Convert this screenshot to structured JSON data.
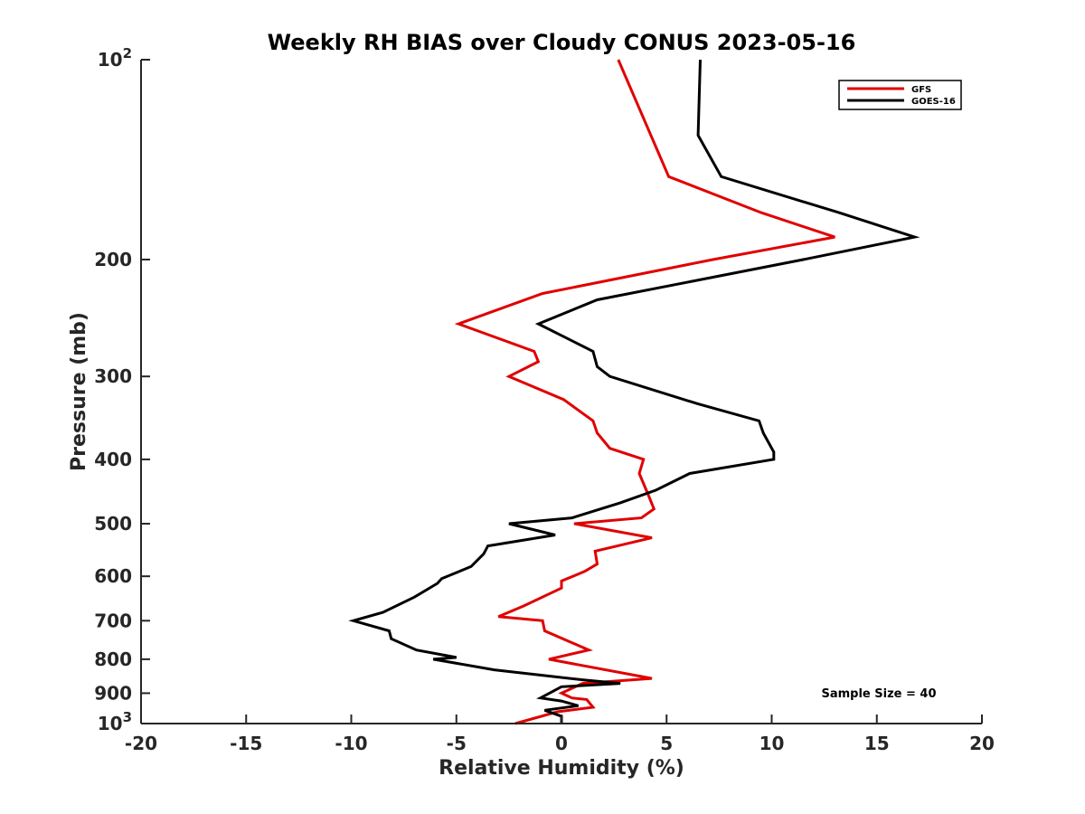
{
  "chart_data": {
    "type": "line",
    "title": "Weekly RH BIAS over Cloudy CONUS 2023-05-16",
    "xlabel": "Relative Humidity (%)",
    "ylabel": "Pressure (mb)",
    "xlim": [
      -20,
      20
    ],
    "ylim": [
      1000,
      100
    ],
    "y_scale": "log",
    "x_ticks": [
      "-20",
      "-15",
      "-10",
      "-5",
      "0",
      "5",
      "10",
      "15",
      "20"
    ],
    "y_ticks": [
      {
        "value": 100,
        "label": "10",
        "exp": "2"
      },
      {
        "value": 200,
        "label": "200",
        "exp": ""
      },
      {
        "value": 300,
        "label": "300",
        "exp": ""
      },
      {
        "value": 400,
        "label": "400",
        "exp": ""
      },
      {
        "value": 500,
        "label": "500",
        "exp": ""
      },
      {
        "value": 600,
        "label": "600",
        "exp": ""
      },
      {
        "value": 700,
        "label": "700",
        "exp": ""
      },
      {
        "value": 800,
        "label": "800",
        "exp": ""
      },
      {
        "value": 900,
        "label": "900",
        "exp": ""
      },
      {
        "value": 1000,
        "label": "10",
        "exp": "3"
      }
    ],
    "grid": false,
    "legend_position": "top-right",
    "annotation": "Sample Size = 40",
    "series": [
      {
        "name": "GFS",
        "color": "#e00000",
        "points": [
          [
            2.7,
            100
          ],
          [
            5.1,
            150
          ],
          [
            9.5,
            170
          ],
          [
            13.0,
            185
          ],
          [
            7.2,
            200
          ],
          [
            -0.9,
            225
          ],
          [
            -4.9,
            250
          ],
          [
            -1.3,
            275
          ],
          [
            -1.1,
            285
          ],
          [
            -2.5,
            300
          ],
          [
            0.1,
            325
          ],
          [
            1.5,
            350
          ],
          [
            1.7,
            365
          ],
          [
            2.3,
            385
          ],
          [
            3.9,
            400
          ],
          [
            3.7,
            420
          ],
          [
            4.1,
            450
          ],
          [
            4.4,
            475
          ],
          [
            3.8,
            490
          ],
          [
            0.6,
            500
          ],
          [
            4.3,
            525
          ],
          [
            1.6,
            550
          ],
          [
            1.7,
            575
          ],
          [
            1.1,
            590
          ],
          [
            0.0,
            610
          ],
          [
            0.0,
            625
          ],
          [
            -1.8,
            665
          ],
          [
            -3.0,
            690
          ],
          [
            -0.9,
            700
          ],
          [
            -0.8,
            725
          ],
          [
            1.3,
            775
          ],
          [
            -0.6,
            800
          ],
          [
            4.3,
            855
          ],
          [
            1.0,
            870
          ],
          [
            0.0,
            900
          ],
          [
            0.5,
            915
          ],
          [
            1.2,
            920
          ],
          [
            1.5,
            945
          ],
          [
            -0.2,
            960
          ],
          [
            -2.2,
            1000
          ]
        ]
      },
      {
        "name": "GOES-16",
        "color": "#000000",
        "points": [
          [
            6.6,
            100
          ],
          [
            6.5,
            130
          ],
          [
            7.6,
            150
          ],
          [
            13.2,
            170
          ],
          [
            16.8,
            185
          ],
          [
            11.5,
            200
          ],
          [
            1.7,
            230
          ],
          [
            -1.1,
            250
          ],
          [
            1.5,
            275
          ],
          [
            1.7,
            290
          ],
          [
            2.3,
            300
          ],
          [
            6.5,
            330
          ],
          [
            9.4,
            350
          ],
          [
            9.6,
            365
          ],
          [
            10.1,
            390
          ],
          [
            10.1,
            400
          ],
          [
            6.1,
            420
          ],
          [
            4.5,
            445
          ],
          [
            2.8,
            465
          ],
          [
            0.5,
            490
          ],
          [
            -2.5,
            500
          ],
          [
            -0.3,
            520
          ],
          [
            -3.5,
            540
          ],
          [
            -3.7,
            555
          ],
          [
            -4.3,
            580
          ],
          [
            -5.7,
            605
          ],
          [
            -5.9,
            615
          ],
          [
            -7.0,
            645
          ],
          [
            -8.5,
            680
          ],
          [
            -9.9,
            700
          ],
          [
            -8.2,
            725
          ],
          [
            -8.1,
            745
          ],
          [
            -6.9,
            775
          ],
          [
            -5.0,
            795
          ],
          [
            -6.1,
            800
          ],
          [
            -3.2,
            830
          ],
          [
            1.1,
            860
          ],
          [
            2.8,
            870
          ],
          [
            0.0,
            880
          ],
          [
            -1.0,
            915
          ],
          [
            0.0,
            925
          ],
          [
            0.8,
            940
          ],
          [
            -0.8,
            955
          ],
          [
            0.0,
            975
          ],
          [
            0.0,
            1000
          ]
        ]
      }
    ]
  }
}
